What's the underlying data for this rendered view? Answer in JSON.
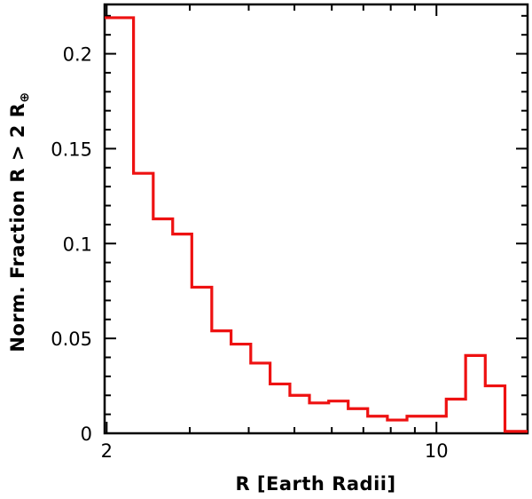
{
  "chart_data": {
    "type": "step-histogram",
    "xlabel": "R [Earth Radii]",
    "ylabel": "Norm. Fraction R > 2 R",
    "ylabel_symbol": "⊕",
    "xscale": "log",
    "xlim": [
      1.98,
      15.6
    ],
    "ylim": [
      0,
      0.226
    ],
    "xticks_major": [
      {
        "value": 2,
        "label": "2"
      },
      {
        "value": 10,
        "label": "10"
      }
    ],
    "xticks_minor": [
      3,
      4,
      5,
      6,
      7,
      8,
      9
    ],
    "yticks": [
      {
        "value": 0,
        "label": "0"
      },
      {
        "value": 0.05,
        "label": "0.05"
      },
      {
        "value": 0.1,
        "label": "0.1"
      },
      {
        "value": 0.15,
        "label": "0.15"
      },
      {
        "value": 0.2,
        "label": "0.2"
      }
    ],
    "line_color": "#ee1111",
    "bin_edges": [
      1.98,
      2.28,
      2.51,
      2.76,
      3.03,
      3.34,
      3.67,
      4.04,
      4.44,
      4.89,
      5.38,
      5.91,
      6.5,
      7.15,
      7.87,
      8.66,
      9.53,
      10.49,
      11.53,
      12.69,
      13.97,
      15.6
    ],
    "values": [
      0.219,
      0.137,
      0.113,
      0.105,
      0.077,
      0.054,
      0.047,
      0.037,
      0.026,
      0.02,
      0.016,
      0.017,
      0.013,
      0.009,
      0.007,
      0.009,
      0.009,
      0.018,
      0.041,
      0.025,
      0.001
    ]
  }
}
